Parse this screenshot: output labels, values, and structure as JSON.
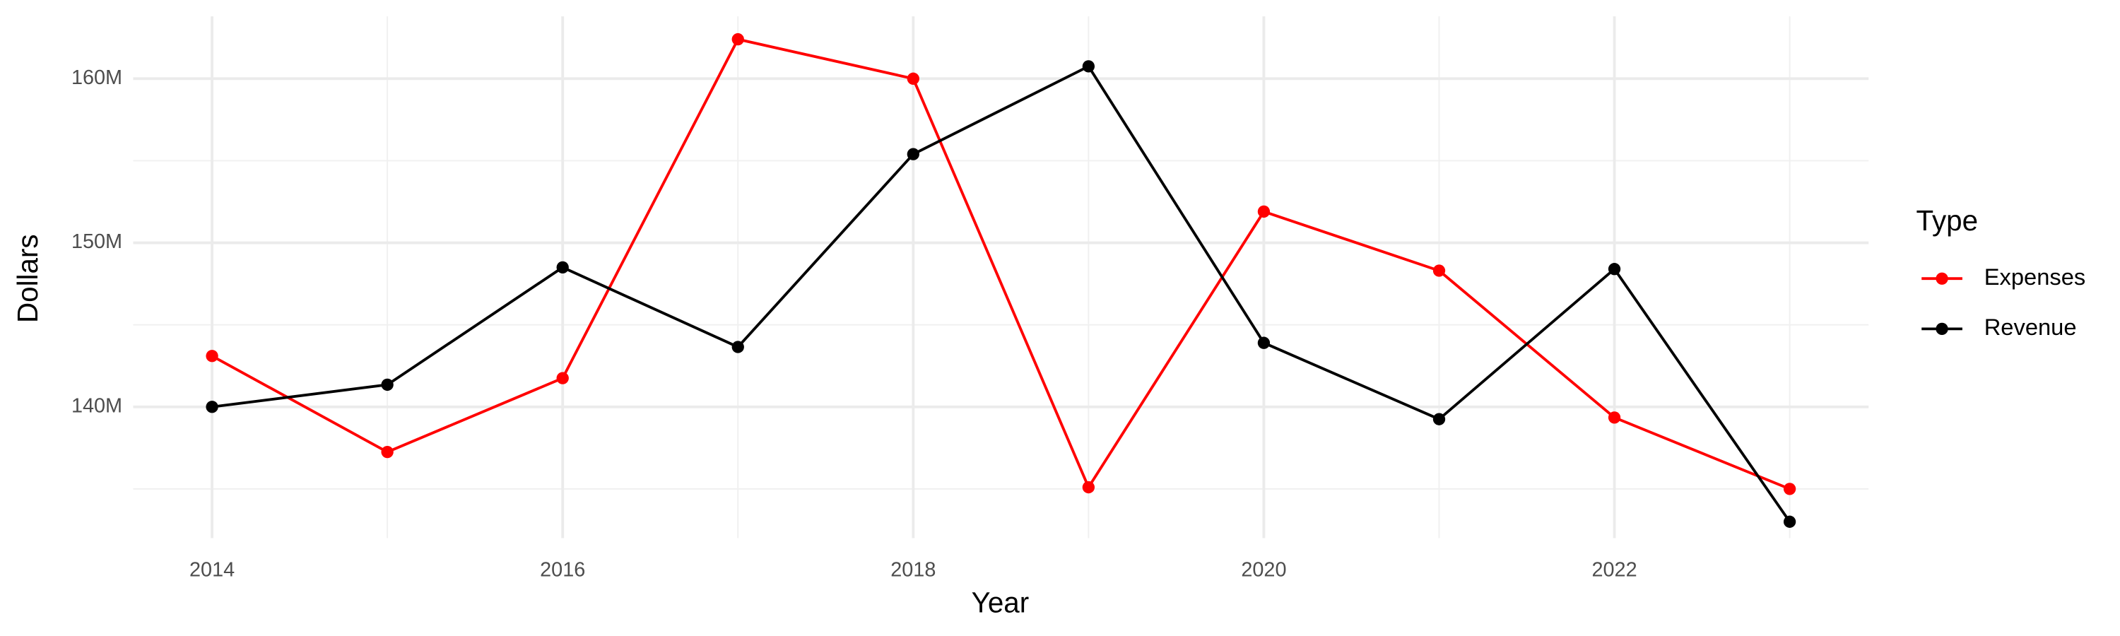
{
  "chart_data": {
    "type": "line",
    "x_label": "Year",
    "y_label": "Dollars",
    "legend_title": "Type",
    "legend_position": "right",
    "x": [
      2014,
      2015,
      2016,
      2017,
      2018,
      2019,
      2020,
      2021,
      2022,
      2023
    ],
    "series": [
      {
        "name": "Expenses",
        "color": "#ff0000",
        "values": [
          143100000,
          137250000,
          141750000,
          162400000,
          160000000,
          135100000,
          151900000,
          148300000,
          139350000,
          135000000
        ]
      },
      {
        "name": "Revenue",
        "color": "#000000",
        "values": [
          140000000,
          141350000,
          148500000,
          143650000,
          155400000,
          160750000,
          143900000,
          139250000,
          148400000,
          133000000
        ]
      }
    ],
    "xlim": [
      2013.55,
      2023.45
    ],
    "xticks": [
      2014,
      2016,
      2018,
      2020,
      2022
    ],
    "minor_xticks": [
      2015,
      2017,
      2019,
      2021,
      2023
    ],
    "ylim": [
      132000000,
      163800000
    ],
    "yticks": [
      {
        "value": 140000000,
        "label": "140M"
      },
      {
        "value": 150000000,
        "label": "150M"
      },
      {
        "value": 160000000,
        "label": "160M"
      }
    ],
    "minor_yticks": [
      135000000,
      145000000,
      155000000
    ],
    "grid": true
  }
}
